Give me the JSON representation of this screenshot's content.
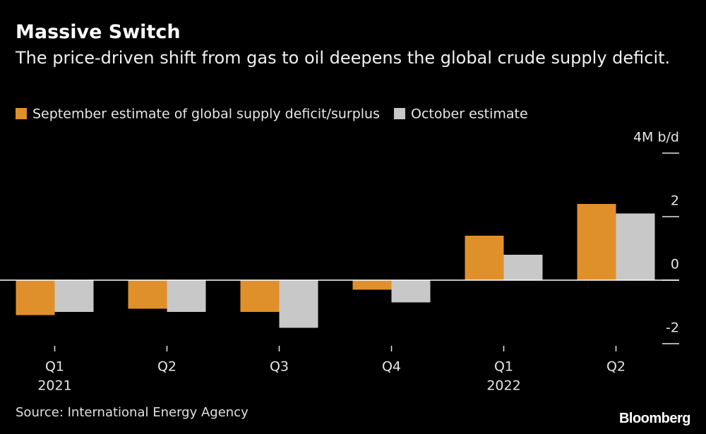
{
  "chart_data": {
    "type": "bar",
    "title": "Massive Switch",
    "subtitle": "The price-driven shift from gas to oil deepens the global crude supply deficit.",
    "categories": [
      "Q1",
      "Q2",
      "Q3",
      "Q4",
      "Q1",
      "Q2"
    ],
    "category_years": [
      "2021",
      null,
      null,
      null,
      "2022",
      null
    ],
    "series": [
      {
        "name": "September estimate of global supply deficit/surplus",
        "color": "#e0902a",
        "values": [
          -1.1,
          -0.9,
          -1.0,
          -0.3,
          1.4,
          2.4
        ]
      },
      {
        "name": "October estimate",
        "color": "#c8c8c8",
        "values": [
          -1.0,
          -1.0,
          -1.5,
          -0.7,
          0.8,
          2.1
        ]
      }
    ],
    "ylim": [
      -2,
      4
    ],
    "yticks": [
      -2,
      0,
      2,
      {
        "value": 4,
        "label": "4M b/d"
      }
    ],
    "source": "Source: International Energy Agency",
    "brand": "Bloomberg"
  }
}
